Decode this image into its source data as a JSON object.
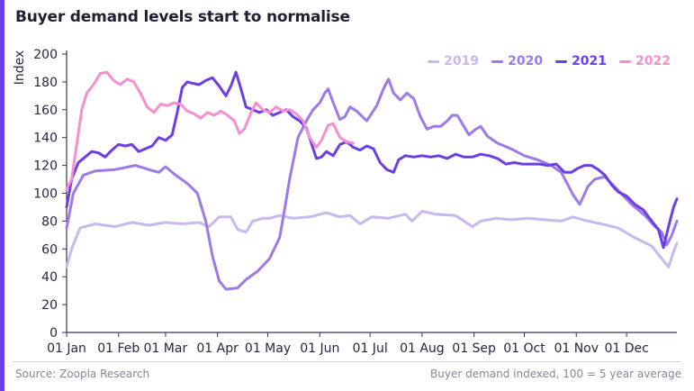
{
  "header": {
    "title": "Buyer demand levels start to normalise"
  },
  "footer": {
    "source": "Source: Zoopla Research",
    "note": "Buyer demand indexed, 100 = 5 year average"
  },
  "colors": {
    "accent": "#6b3ee6",
    "2019": "#c8b8f0",
    "2020": "#9d7ae8",
    "2021": "#6b3ee6",
    "2022": "#f78fcf"
  },
  "chart_data": {
    "type": "line",
    "ylabel": "Index",
    "ylim": [
      0,
      200
    ],
    "yticks": [
      0,
      20,
      40,
      60,
      80,
      100,
      120,
      140,
      160,
      180,
      200
    ],
    "xlim": [
      1,
      365
    ],
    "grid": false,
    "legend_position": "top-right",
    "x_tick_labels": [
      "01 Jan",
      "01 Feb",
      "01 Mar",
      "01 Apr",
      "01 May",
      "01 Jun",
      "01 Jul",
      "01 Aug",
      "01 Sep",
      "01 Oct",
      "01 Nov",
      "01 Dec"
    ],
    "x_tick_days": [
      1,
      32,
      60,
      91,
      121,
      152,
      182,
      213,
      244,
      274,
      305,
      335
    ],
    "series": [
      {
        "name": "2019",
        "color": "#c8b8f0",
        "points": [
          [
            1,
            47
          ],
          [
            4,
            60
          ],
          [
            9,
            75
          ],
          [
            18,
            78
          ],
          [
            30,
            76
          ],
          [
            40,
            79
          ],
          [
            50,
            77
          ],
          [
            60,
            79
          ],
          [
            70,
            78
          ],
          [
            80,
            79
          ],
          [
            86,
            76
          ],
          [
            92,
            83
          ],
          [
            99,
            83
          ],
          [
            103,
            74
          ],
          [
            108,
            72
          ],
          [
            112,
            80
          ],
          [
            118,
            82
          ],
          [
            122,
            82
          ],
          [
            128,
            84
          ],
          [
            136,
            82
          ],
          [
            146,
            83
          ],
          [
            156,
            86
          ],
          [
            164,
            83
          ],
          [
            170,
            84
          ],
          [
            176,
            78
          ],
          [
            183,
            83
          ],
          [
            193,
            82
          ],
          [
            203,
            85
          ],
          [
            207,
            80
          ],
          [
            213,
            87
          ],
          [
            221,
            85
          ],
          [
            233,
            84
          ],
          [
            238,
            80
          ],
          [
            243,
            76
          ],
          [
            248,
            80
          ],
          [
            257,
            82
          ],
          [
            266,
            81
          ],
          [
            276,
            82
          ],
          [
            286,
            81
          ],
          [
            296,
            80
          ],
          [
            303,
            83
          ],
          [
            312,
            80
          ],
          [
            320,
            78
          ],
          [
            330,
            75
          ],
          [
            340,
            68
          ],
          [
            350,
            62
          ],
          [
            356,
            53
          ],
          [
            360,
            47
          ],
          [
            363,
            58
          ],
          [
            365,
            64
          ]
        ]
      },
      {
        "name": "2020",
        "color": "#9d7ae8",
        "points": [
          [
            1,
            75
          ],
          [
            5,
            100
          ],
          [
            11,
            113
          ],
          [
            18,
            116
          ],
          [
            30,
            117
          ],
          [
            42,
            120
          ],
          [
            50,
            117
          ],
          [
            56,
            115
          ],
          [
            60,
            119
          ],
          [
            66,
            113
          ],
          [
            73,
            107
          ],
          [
            79,
            100
          ],
          [
            84,
            80
          ],
          [
            88,
            55
          ],
          [
            92,
            37
          ],
          [
            96,
            31
          ],
          [
            103,
            32
          ],
          [
            108,
            38
          ],
          [
            115,
            44
          ],
          [
            122,
            53
          ],
          [
            128,
            68
          ],
          [
            131,
            88
          ],
          [
            134,
            110
          ],
          [
            137,
            128
          ],
          [
            139,
            140
          ],
          [
            144,
            152
          ],
          [
            148,
            160
          ],
          [
            152,
            165
          ],
          [
            155,
            172
          ],
          [
            157,
            175
          ],
          [
            160,
            165
          ],
          [
            164,
            153
          ],
          [
            167,
            155
          ],
          [
            170,
            162
          ],
          [
            174,
            159
          ],
          [
            180,
            152
          ],
          [
            186,
            163
          ],
          [
            190,
            175
          ],
          [
            193,
            182
          ],
          [
            196,
            172
          ],
          [
            200,
            167
          ],
          [
            204,
            172
          ],
          [
            208,
            168
          ],
          [
            212,
            155
          ],
          [
            216,
            146
          ],
          [
            220,
            148
          ],
          [
            224,
            148
          ],
          [
            228,
            152
          ],
          [
            231,
            156
          ],
          [
            234,
            156
          ],
          [
            238,
            148
          ],
          [
            241,
            142
          ],
          [
            245,
            146
          ],
          [
            248,
            148
          ],
          [
            252,
            141
          ],
          [
            258,
            136
          ],
          [
            266,
            132
          ],
          [
            274,
            127
          ],
          [
            282,
            124
          ],
          [
            290,
            120
          ],
          [
            296,
            115
          ],
          [
            300,
            106
          ],
          [
            303,
            99
          ],
          [
            307,
            92
          ],
          [
            312,
            105
          ],
          [
            316,
            110
          ],
          [
            322,
            112
          ],
          [
            330,
            102
          ],
          [
            338,
            92
          ],
          [
            346,
            84
          ],
          [
            352,
            76
          ],
          [
            356,
            72
          ],
          [
            359,
            63
          ],
          [
            362,
            70
          ],
          [
            365,
            80
          ]
        ]
      },
      {
        "name": "2021",
        "color": "#6b3ee6",
        "points": [
          [
            1,
            90
          ],
          [
            4,
            110
          ],
          [
            8,
            122
          ],
          [
            12,
            126
          ],
          [
            16,
            130
          ],
          [
            20,
            129
          ],
          [
            24,
            126
          ],
          [
            28,
            131
          ],
          [
            32,
            135
          ],
          [
            36,
            134
          ],
          [
            40,
            135
          ],
          [
            44,
            130
          ],
          [
            48,
            132
          ],
          [
            52,
            134
          ],
          [
            56,
            140
          ],
          [
            60,
            138
          ],
          [
            64,
            142
          ],
          [
            67,
            158
          ],
          [
            70,
            176
          ],
          [
            73,
            180
          ],
          [
            76,
            179
          ],
          [
            80,
            178
          ],
          [
            84,
            181
          ],
          [
            88,
            183
          ],
          [
            92,
            177
          ],
          [
            96,
            170
          ],
          [
            99,
            177
          ],
          [
            102,
            187
          ],
          [
            105,
            175
          ],
          [
            108,
            162
          ],
          [
            112,
            160
          ],
          [
            116,
            158
          ],
          [
            120,
            160
          ],
          [
            124,
            156
          ],
          [
            128,
            158
          ],
          [
            132,
            160
          ],
          [
            136,
            155
          ],
          [
            140,
            152
          ],
          [
            144,
            147
          ],
          [
            147,
            136
          ],
          [
            150,
            125
          ],
          [
            153,
            126
          ],
          [
            156,
            130
          ],
          [
            160,
            127
          ],
          [
            164,
            135
          ],
          [
            168,
            137
          ],
          [
            172,
            133
          ],
          [
            176,
            131
          ],
          [
            180,
            134
          ],
          [
            184,
            132
          ],
          [
            188,
            122
          ],
          [
            192,
            117
          ],
          [
            196,
            115
          ],
          [
            199,
            124
          ],
          [
            203,
            127
          ],
          [
            208,
            126
          ],
          [
            213,
            127
          ],
          [
            218,
            126
          ],
          [
            223,
            127
          ],
          [
            228,
            125
          ],
          [
            233,
            128
          ],
          [
            238,
            126
          ],
          [
            243,
            126
          ],
          [
            248,
            128
          ],
          [
            253,
            127
          ],
          [
            258,
            125
          ],
          [
            263,
            121
          ],
          [
            268,
            122
          ],
          [
            273,
            121
          ],
          [
            278,
            121
          ],
          [
            283,
            121
          ],
          [
            288,
            120
          ],
          [
            293,
            121
          ],
          [
            298,
            115
          ],
          [
            302,
            115
          ],
          [
            306,
            118
          ],
          [
            310,
            120
          ],
          [
            314,
            120
          ],
          [
            318,
            117
          ],
          [
            322,
            113
          ],
          [
            326,
            106
          ],
          [
            330,
            101
          ],
          [
            335,
            98
          ],
          [
            340,
            92
          ],
          [
            345,
            88
          ],
          [
            350,
            80
          ],
          [
            354,
            74
          ],
          [
            357,
            61
          ],
          [
            360,
            76
          ],
          [
            363,
            90
          ],
          [
            365,
            96
          ]
        ]
      },
      {
        "name": "2022",
        "color": "#f78fcf",
        "points": [
          [
            1,
            103
          ],
          [
            4,
            110
          ],
          [
            7,
            135
          ],
          [
            10,
            160
          ],
          [
            13,
            172
          ],
          [
            17,
            178
          ],
          [
            21,
            186
          ],
          [
            25,
            187
          ],
          [
            29,
            181
          ],
          [
            33,
            178
          ],
          [
            37,
            182
          ],
          [
            41,
            180
          ],
          [
            45,
            172
          ],
          [
            49,
            162
          ],
          [
            53,
            158
          ],
          [
            57,
            164
          ],
          [
            61,
            163
          ],
          [
            65,
            165
          ],
          [
            69,
            164
          ],
          [
            73,
            159
          ],
          [
            77,
            157
          ],
          [
            81,
            154
          ],
          [
            85,
            158
          ],
          [
            89,
            156
          ],
          [
            93,
            159
          ],
          [
            97,
            156
          ],
          [
            101,
            152
          ],
          [
            104,
            143
          ],
          [
            107,
            146
          ],
          [
            111,
            158
          ],
          [
            114,
            165
          ],
          [
            118,
            160
          ],
          [
            122,
            158
          ],
          [
            126,
            162
          ],
          [
            130,
            159
          ],
          [
            134,
            160
          ],
          [
            138,
            157
          ],
          [
            142,
            152
          ],
          [
            146,
            140
          ],
          [
            150,
            133
          ],
          [
            153,
            138
          ],
          [
            157,
            149
          ],
          [
            160,
            150
          ],
          [
            164,
            140
          ],
          [
            168,
            137
          ],
          [
            172,
            136
          ]
        ]
      }
    ]
  }
}
